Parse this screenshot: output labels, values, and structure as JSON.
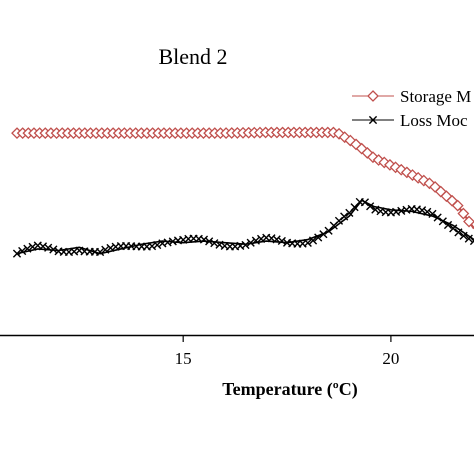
{
  "chart_data": {
    "type": "line",
    "title": "Blend 2",
    "xlabel": "Temperature (ºC)",
    "ylabel": "",
    "xlim": [
      11,
      22
    ],
    "ylim": [
      0,
      100
    ],
    "x_ticks": [
      15,
      20
    ],
    "x_tick_labels": [
      "15",
      "20"
    ],
    "grid": false,
    "legend": {
      "placement": "top-right"
    },
    "series": [
      {
        "name": "Storage M",
        "color": "#c0504d",
        "marker": "diamond",
        "x": [
          11.0,
          12.0,
          13.0,
          14.0,
          15.0,
          16.0,
          17.0,
          18.0,
          18.7,
          19.1,
          19.6,
          20.3,
          21.0,
          21.6,
          22.0
        ],
        "y": [
          64.5,
          64.5,
          64.5,
          64.5,
          64.5,
          64.5,
          64.7,
          64.7,
          64.7,
          61.5,
          56.5,
          52.5,
          48.0,
          41.5,
          34.0
        ]
      },
      {
        "name": "Loss Moc",
        "color": "#000000",
        "marker": "x",
        "x": [
          11.0,
          11.5,
          12.0,
          12.5,
          13.0,
          13.5,
          14.0,
          14.5,
          15.0,
          15.5,
          16.0,
          16.5,
          17.0,
          17.5,
          18.0,
          18.5,
          19.0,
          19.3,
          19.6,
          20.0,
          20.5,
          21.0,
          21.5,
          22.0
        ],
        "y": [
          26.0,
          27.5,
          27.0,
          28.0,
          26.0,
          27.5,
          29.0,
          30.0,
          29.5,
          30.0,
          29.5,
          29.0,
          30.0,
          29.5,
          30.5,
          33.0,
          38.0,
          43.0,
          41.0,
          40.0,
          39.5,
          38.0,
          35.0,
          30.5
        ]
      }
    ]
  }
}
